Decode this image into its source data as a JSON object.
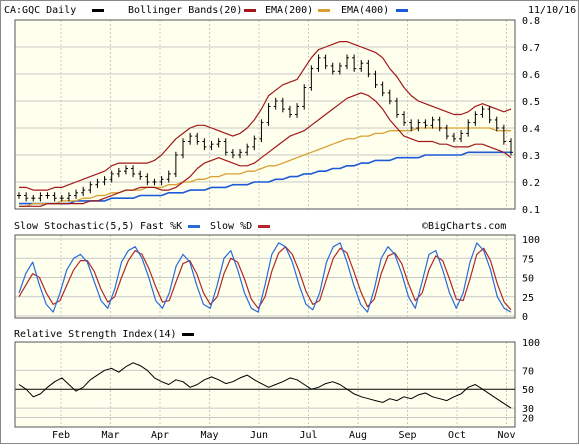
{
  "header": {
    "symbol_label": "CA:GQC Daily",
    "bb_label": "Bollinger Bands(20)",
    "ema200_label": "EMA(200)",
    "ema400_label": "EMA(400)",
    "date": "11/10/16",
    "copyright": "©BigCharts.com"
  },
  "stoch_header": {
    "title": "Slow Stochastic(5,5)",
    "fast_label": "Fast %K",
    "slow_label": "Slow %D"
  },
  "rsi_header": {
    "title": "Relative Strength Index(14)"
  },
  "colors": {
    "background": "#ffffee",
    "bollinger": "#a01818",
    "ema200": "#d9a030",
    "ema400": "#1c5ad8",
    "fast_k": "#2a6ad8",
    "slow_d": "#b02828",
    "rsi": "#000000",
    "grid": "#c8c8c8"
  },
  "chart_data": [
    {
      "type": "line",
      "name": "price",
      "x_labels": [
        "Feb",
        "Mar",
        "Apr",
        "May",
        "Jun",
        "Jul",
        "Aug",
        "Sep",
        "Oct",
        "Nov"
      ],
      "y_ticks": [
        0.1,
        0.2,
        0.3,
        0.4,
        0.5,
        0.6,
        0.7,
        0.8
      ],
      "ylim": [
        0.1,
        0.8
      ],
      "close": [
        0.15,
        0.14,
        0.14,
        0.15,
        0.15,
        0.14,
        0.14,
        0.15,
        0.16,
        0.17,
        0.19,
        0.2,
        0.21,
        0.23,
        0.24,
        0.25,
        0.23,
        0.22,
        0.2,
        0.2,
        0.21,
        0.23,
        0.3,
        0.35,
        0.37,
        0.35,
        0.33,
        0.34,
        0.35,
        0.31,
        0.3,
        0.31,
        0.33,
        0.36,
        0.42,
        0.48,
        0.5,
        0.47,
        0.45,
        0.48,
        0.55,
        0.62,
        0.66,
        0.63,
        0.61,
        0.63,
        0.66,
        0.62,
        0.64,
        0.6,
        0.56,
        0.53,
        0.5,
        0.45,
        0.42,
        0.4,
        0.42,
        0.41,
        0.43,
        0.4,
        0.37,
        0.36,
        0.38,
        0.42,
        0.45,
        0.47,
        0.43,
        0.4,
        0.35,
        0.31
      ],
      "bb_upper": [
        0.18,
        0.18,
        0.17,
        0.17,
        0.17,
        0.18,
        0.18,
        0.19,
        0.2,
        0.21,
        0.22,
        0.23,
        0.24,
        0.26,
        0.27,
        0.27,
        0.27,
        0.27,
        0.27,
        0.28,
        0.3,
        0.33,
        0.36,
        0.38,
        0.4,
        0.41,
        0.41,
        0.4,
        0.39,
        0.38,
        0.37,
        0.38,
        0.4,
        0.43,
        0.47,
        0.52,
        0.54,
        0.56,
        0.57,
        0.58,
        0.62,
        0.66,
        0.69,
        0.7,
        0.71,
        0.72,
        0.72,
        0.71,
        0.7,
        0.69,
        0.68,
        0.66,
        0.62,
        0.59,
        0.55,
        0.52,
        0.5,
        0.49,
        0.48,
        0.47,
        0.46,
        0.45,
        0.45,
        0.46,
        0.48,
        0.49,
        0.48,
        0.47,
        0.46,
        0.47
      ],
      "bb_lower": [
        0.11,
        0.11,
        0.11,
        0.11,
        0.12,
        0.12,
        0.12,
        0.12,
        0.12,
        0.12,
        0.13,
        0.13,
        0.14,
        0.15,
        0.16,
        0.17,
        0.17,
        0.18,
        0.18,
        0.18,
        0.17,
        0.17,
        0.18,
        0.2,
        0.22,
        0.25,
        0.27,
        0.28,
        0.29,
        0.28,
        0.27,
        0.26,
        0.26,
        0.27,
        0.29,
        0.31,
        0.33,
        0.35,
        0.37,
        0.38,
        0.39,
        0.41,
        0.43,
        0.45,
        0.47,
        0.49,
        0.51,
        0.52,
        0.53,
        0.52,
        0.5,
        0.47,
        0.43,
        0.4,
        0.37,
        0.36,
        0.35,
        0.35,
        0.35,
        0.34,
        0.34,
        0.33,
        0.33,
        0.33,
        0.34,
        0.34,
        0.33,
        0.32,
        0.31,
        0.29
      ],
      "ema200": [
        0.11,
        0.11,
        0.12,
        0.12,
        0.12,
        0.12,
        0.13,
        0.13,
        0.13,
        0.14,
        0.14,
        0.15,
        0.15,
        0.16,
        0.16,
        0.17,
        0.17,
        0.17,
        0.18,
        0.18,
        0.18,
        0.19,
        0.19,
        0.2,
        0.2,
        0.21,
        0.21,
        0.22,
        0.22,
        0.23,
        0.23,
        0.23,
        0.24,
        0.24,
        0.25,
        0.26,
        0.26,
        0.27,
        0.28,
        0.29,
        0.3,
        0.31,
        0.32,
        0.33,
        0.34,
        0.35,
        0.36,
        0.36,
        0.37,
        0.37,
        0.38,
        0.38,
        0.39,
        0.39,
        0.39,
        0.39,
        0.4,
        0.4,
        0.4,
        0.4,
        0.4,
        0.4,
        0.4,
        0.4,
        0.4,
        0.4,
        0.4,
        0.39,
        0.39,
        0.39
      ],
      "ema400": [
        0.12,
        0.12,
        0.12,
        0.12,
        0.12,
        0.12,
        0.12,
        0.12,
        0.13,
        0.13,
        0.13,
        0.13,
        0.13,
        0.14,
        0.14,
        0.14,
        0.14,
        0.15,
        0.15,
        0.15,
        0.15,
        0.16,
        0.16,
        0.16,
        0.17,
        0.17,
        0.17,
        0.18,
        0.18,
        0.18,
        0.19,
        0.19,
        0.19,
        0.2,
        0.2,
        0.2,
        0.21,
        0.21,
        0.22,
        0.22,
        0.23,
        0.23,
        0.24,
        0.24,
        0.25,
        0.25,
        0.26,
        0.26,
        0.27,
        0.27,
        0.28,
        0.28,
        0.28,
        0.29,
        0.29,
        0.29,
        0.29,
        0.3,
        0.3,
        0.3,
        0.3,
        0.3,
        0.3,
        0.31,
        0.31,
        0.31,
        0.31,
        0.31,
        0.31,
        0.31
      ]
    },
    {
      "type": "line",
      "name": "stochastic",
      "y_ticks": [
        0,
        25,
        50,
        75,
        100
      ],
      "ylim": [
        0,
        100
      ],
      "fast_k": [
        30,
        55,
        70,
        40,
        15,
        5,
        30,
        60,
        75,
        80,
        70,
        45,
        20,
        10,
        35,
        70,
        85,
        90,
        75,
        50,
        20,
        10,
        30,
        65,
        80,
        70,
        40,
        15,
        10,
        40,
        75,
        85,
        60,
        30,
        10,
        5,
        40,
        80,
        95,
        90,
        70,
        40,
        15,
        8,
        30,
        70,
        90,
        95,
        70,
        40,
        15,
        5,
        35,
        75,
        90,
        80,
        55,
        25,
        10,
        45,
        80,
        85,
        60,
        30,
        10,
        30,
        70,
        95,
        85,
        60,
        25,
        10,
        5
      ],
      "slow_d": [
        25,
        40,
        55,
        50,
        30,
        15,
        20,
        40,
        60,
        72,
        72,
        58,
        35,
        18,
        25,
        50,
        72,
        85,
        80,
        62,
        38,
        18,
        20,
        45,
        68,
        72,
        55,
        30,
        15,
        25,
        55,
        75,
        70,
        48,
        22,
        10,
        25,
        58,
        82,
        90,
        80,
        58,
        32,
        15,
        20,
        48,
        75,
        88,
        82,
        58,
        32,
        12,
        22,
        55,
        78,
        82,
        68,
        42,
        20,
        30,
        60,
        78,
        72,
        48,
        22,
        20,
        48,
        80,
        88,
        72,
        42,
        18,
        8
      ]
    },
    {
      "type": "line",
      "name": "rsi",
      "y_ticks": [
        20,
        30,
        50,
        70,
        100
      ],
      "ylim": [
        10,
        100
      ],
      "rsi": [
        55,
        50,
        42,
        45,
        52,
        58,
        62,
        55,
        48,
        52,
        60,
        65,
        70,
        72,
        68,
        74,
        78,
        75,
        70,
        62,
        58,
        55,
        60,
        58,
        52,
        55,
        60,
        63,
        60,
        56,
        58,
        62,
        65,
        60,
        56,
        52,
        55,
        58,
        62,
        60,
        55,
        50,
        52,
        56,
        58,
        55,
        50,
        45,
        42,
        40,
        38,
        36,
        40,
        38,
        42,
        40,
        44,
        46,
        42,
        40,
        38,
        42,
        45,
        52,
        55,
        50,
        45,
        40,
        35,
        30
      ]
    }
  ]
}
